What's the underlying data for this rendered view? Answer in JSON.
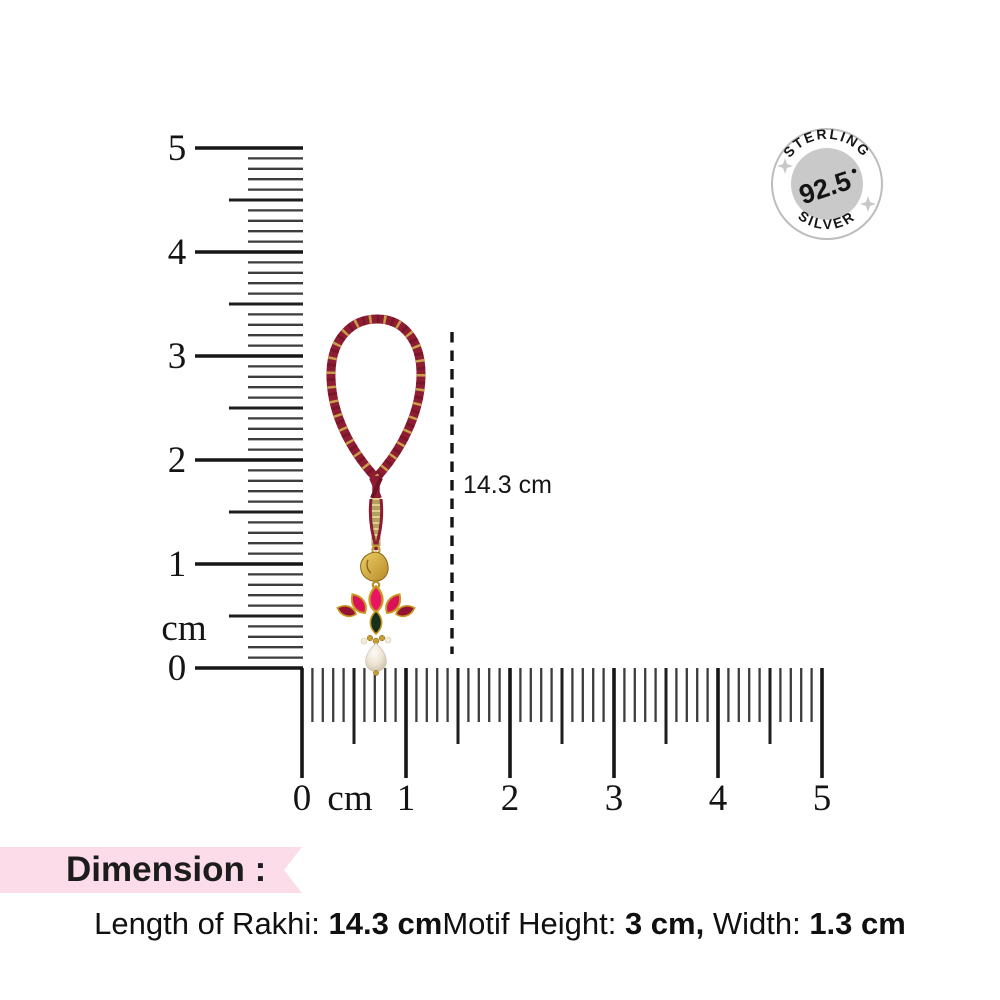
{
  "badge": {
    "arc_top": "STERLING",
    "arc_bottom": "SILVER",
    "purity": "92.5",
    "ring_color": "#bdbdbd",
    "inner_color": "#c9c9c9",
    "star_color": "#c8c8c8"
  },
  "measurement_annotation": {
    "label": "14.3 cm"
  },
  "rulers": {
    "vertical": {
      "unit_label": "cm",
      "tick_labels": [
        "0",
        "1",
        "2",
        "3",
        "4",
        "5"
      ]
    },
    "horizontal": {
      "unit_label": "cm",
      "tick_labels": [
        "0",
        "1",
        "2",
        "3",
        "4",
        "5"
      ]
    }
  },
  "product": {
    "name": "Lotus motif rakhi with pearl drop on maroon-gold twisted thread",
    "thread_color": "#8e1d33",
    "gold_thread_color": "#c8a04a",
    "gold_segment_color": "#b1a05e",
    "motif": {
      "petal_center": "#ea1364",
      "petal_inner": "#da1058",
      "petal_outer": "#931334",
      "leaf_drop": "#16301d",
      "gold_frame": "#c8991f",
      "pearl": "#efe7d9"
    }
  },
  "banner": {
    "label": "Dimension :",
    "background": "#fbdce8"
  },
  "dimension_line": {
    "segments": [
      {
        "text": "Length of Rakhi: ",
        "bold": false
      },
      {
        "text": "14.3 cm",
        "bold": true
      },
      {
        "text": "Motif Height: ",
        "bold": false
      },
      {
        "text": "3 cm,",
        "bold": true
      },
      {
        "text": " Width: ",
        "bold": false
      },
      {
        "text": "1.3 cm",
        "bold": true
      }
    ]
  }
}
